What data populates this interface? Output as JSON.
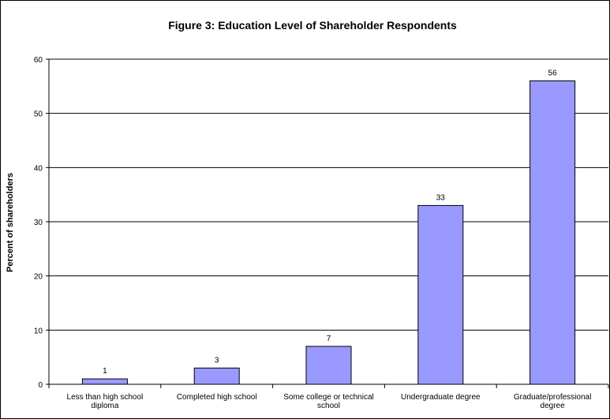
{
  "chart_data": {
    "type": "bar",
    "title": "Figure 3: Education Level of Shareholder Respondents",
    "xlabel": "",
    "ylabel": "Percent of shareholders",
    "ylim": [
      0,
      60
    ],
    "yticks": [
      0,
      10,
      20,
      30,
      40,
      50,
      60
    ],
    "grid": true,
    "categories": [
      [
        "Less than high school",
        "diploma"
      ],
      [
        "Completed high school"
      ],
      [
        "Some college or technical",
        "school"
      ],
      [
        "Undergraduate degree"
      ],
      [
        "Graduate/professional",
        "degree"
      ]
    ],
    "values": [
      1,
      3,
      7,
      33,
      56
    ],
    "data_labels": [
      "1",
      "3",
      "7",
      "33",
      "56"
    ],
    "bar_color": "#9999ff"
  }
}
